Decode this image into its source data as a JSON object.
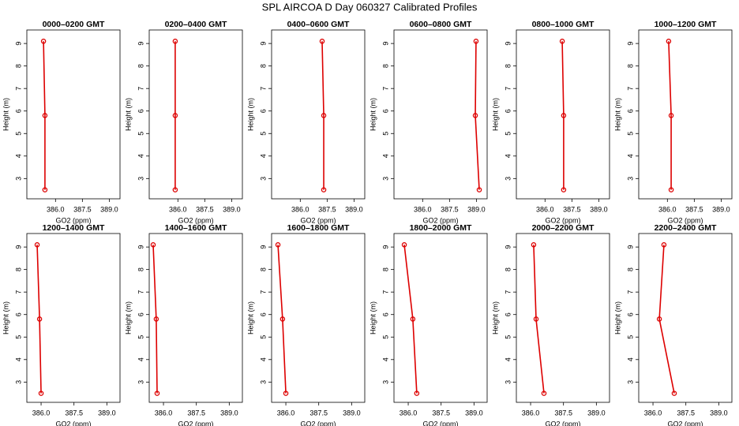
{
  "title": "SPL AIRCOA D  Day 060327  Calibrated Profiles",
  "chart_data": [
    {
      "type": "line",
      "title": "0000–0200 GMT",
      "xlabel": "GO2 (ppm)",
      "ylabel": "Height (m)",
      "color": "#dd0000",
      "x": [
        385.33,
        385.41,
        385.41
      ],
      "values": [
        9.1,
        5.8,
        2.5
      ],
      "xlim": [
        384.4,
        389.6
      ],
      "ylim": [
        2.1,
        9.6
      ],
      "xticks": [
        {
          "value": 386.0,
          "label": "386.0"
        },
        {
          "value": 387.5,
          "label": "387.5"
        },
        {
          "value": 389.0,
          "label": "389.0"
        }
      ],
      "yticks": [
        3,
        4,
        5,
        6,
        7,
        8,
        9
      ]
    },
    {
      "type": "line",
      "title": "0200–0400 GMT",
      "xlabel": "GO2 (ppm)",
      "ylabel": "Height (m)",
      "color": "#dd0000",
      "x": [
        385.85,
        385.85,
        385.85
      ],
      "values": [
        9.1,
        5.8,
        2.5
      ],
      "xlim": [
        384.4,
        389.6
      ],
      "ylim": [
        2.1,
        9.6
      ],
      "xticks": [
        {
          "value": 386.0,
          "label": "386.0"
        },
        {
          "value": 387.5,
          "label": "387.5"
        },
        {
          "value": 389.0,
          "label": "389.0"
        }
      ],
      "yticks": [
        3,
        4,
        5,
        6,
        7,
        8,
        9
      ]
    },
    {
      "type": "line",
      "title": "0400–0600 GMT",
      "xlabel": "GO2 (ppm)",
      "ylabel": "Height (m)",
      "color": "#dd0000",
      "x": [
        387.22,
        387.31,
        387.31
      ],
      "values": [
        9.1,
        5.8,
        2.5
      ],
      "xlim": [
        384.4,
        389.6
      ],
      "ylim": [
        2.1,
        9.6
      ],
      "xticks": [
        {
          "value": 386.0,
          "label": "386.0"
        },
        {
          "value": 387.5,
          "label": "387.5"
        },
        {
          "value": 389.0,
          "label": "389.0"
        }
      ],
      "yticks": [
        3,
        4,
        5,
        6,
        7,
        8,
        9
      ]
    },
    {
      "type": "line",
      "title": "0600–0800 GMT",
      "xlabel": "GO2 (ppm)",
      "ylabel": "Height (m)",
      "color": "#dd0000",
      "x": [
        388.98,
        388.94,
        389.16
      ],
      "values": [
        9.1,
        5.8,
        2.5
      ],
      "xlim": [
        384.4,
        389.6
      ],
      "ylim": [
        2.1,
        9.6
      ],
      "xticks": [
        {
          "value": 386.0,
          "label": "386.0"
        },
        {
          "value": 387.5,
          "label": "387.5"
        },
        {
          "value": 389.0,
          "label": "389.0"
        }
      ],
      "yticks": [
        3,
        4,
        5,
        6,
        7,
        8,
        9
      ]
    },
    {
      "type": "line",
      "title": "0800–1000 GMT",
      "xlabel": "GO2 (ppm)",
      "ylabel": "Height (m)",
      "color": "#dd0000",
      "x": [
        386.96,
        387.04,
        387.04
      ],
      "values": [
        9.1,
        5.8,
        2.5
      ],
      "xlim": [
        384.4,
        389.6
      ],
      "ylim": [
        2.1,
        9.6
      ],
      "xticks": [
        {
          "value": 386.0,
          "label": "386.0"
        },
        {
          "value": 387.5,
          "label": "387.5"
        },
        {
          "value": 389.0,
          "label": "389.0"
        }
      ],
      "yticks": [
        3,
        4,
        5,
        6,
        7,
        8,
        9
      ]
    },
    {
      "type": "line",
      "title": "1000–1200 GMT",
      "xlabel": "GO2 (ppm)",
      "ylabel": "Height (m)",
      "color": "#dd0000",
      "x": [
        386.07,
        386.21,
        386.21
      ],
      "values": [
        9.1,
        5.8,
        2.5
      ],
      "xlim": [
        384.4,
        389.6
      ],
      "ylim": [
        2.1,
        9.6
      ],
      "xticks": [
        {
          "value": 386.0,
          "label": "386.0"
        },
        {
          "value": 387.5,
          "label": "387.5"
        },
        {
          "value": 389.0,
          "label": "389.0"
        }
      ],
      "yticks": [
        3,
        4,
        5,
        6,
        7,
        8,
        9
      ]
    },
    {
      "type": "line",
      "title": "1200–1400 GMT",
      "xlabel": "GO2 (ppm)",
      "ylabel": "Height (m)",
      "color": "#dd0000",
      "x": [
        385.82,
        385.93,
        386.0
      ],
      "values": [
        9.1,
        5.8,
        2.5
      ],
      "xlim": [
        385.35,
        389.6
      ],
      "ylim": [
        2.1,
        9.6
      ],
      "xticks": [
        {
          "value": 386.0,
          "label": "386.0"
        },
        {
          "value": 387.5,
          "label": "387.5"
        },
        {
          "value": 389.0,
          "label": "389.0"
        }
      ],
      "yticks": [
        3,
        4,
        5,
        6,
        7,
        8,
        9
      ]
    },
    {
      "type": "line",
      "title": "1400–1600 GMT",
      "xlabel": "GO2 (ppm)",
      "ylabel": "Height (m)",
      "color": "#dd0000",
      "x": [
        385.53,
        385.67,
        385.71
      ],
      "values": [
        9.1,
        5.8,
        2.5
      ],
      "xlim": [
        385.35,
        389.6
      ],
      "ylim": [
        2.1,
        9.6
      ],
      "xticks": [
        {
          "value": 386.0,
          "label": "386.0"
        },
        {
          "value": 387.5,
          "label": "387.5"
        },
        {
          "value": 389.0,
          "label": "389.0"
        }
      ],
      "yticks": [
        3,
        4,
        5,
        6,
        7,
        8,
        9
      ]
    },
    {
      "type": "line",
      "title": "1600–1800 GMT",
      "xlabel": "GO2 (ppm)",
      "ylabel": "Height (m)",
      "color": "#dd0000",
      "x": [
        385.64,
        385.85,
        386.0
      ],
      "values": [
        9.1,
        5.8,
        2.5
      ],
      "xlim": [
        385.35,
        389.6
      ],
      "ylim": [
        2.1,
        9.6
      ],
      "xticks": [
        {
          "value": 386.0,
          "label": "386.0"
        },
        {
          "value": 387.5,
          "label": "387.5"
        },
        {
          "value": 389.0,
          "label": "389.0"
        }
      ],
      "yticks": [
        3,
        4,
        5,
        6,
        7,
        8,
        9
      ]
    },
    {
      "type": "line",
      "title": "1800–2000 GMT",
      "xlabel": "GO2 (ppm)",
      "ylabel": "Height (m)",
      "color": "#dd0000",
      "x": [
        385.82,
        386.21,
        386.39
      ],
      "values": [
        9.1,
        5.8,
        2.5
      ],
      "xlim": [
        385.35,
        389.6
      ],
      "ylim": [
        2.1,
        9.6
      ],
      "xticks": [
        {
          "value": 386.0,
          "label": "386.0"
        },
        {
          "value": 387.5,
          "label": "387.5"
        },
        {
          "value": 389.0,
          "label": "389.0"
        }
      ],
      "yticks": [
        3,
        4,
        5,
        6,
        7,
        8,
        9
      ]
    },
    {
      "type": "line",
      "title": "2000–2200 GMT",
      "xlabel": "GO2 (ppm)",
      "ylabel": "Height (m)",
      "color": "#dd0000",
      "x": [
        386.14,
        386.25,
        386.61
      ],
      "values": [
        9.1,
        5.8,
        2.5
      ],
      "xlim": [
        385.35,
        389.6
      ],
      "ylim": [
        2.1,
        9.6
      ],
      "xticks": [
        {
          "value": 386.0,
          "label": "386.0"
        },
        {
          "value": 387.5,
          "label": "387.5"
        },
        {
          "value": 389.0,
          "label": "389.0"
        }
      ],
      "yticks": [
        3,
        4,
        5,
        6,
        7,
        8,
        9
      ]
    },
    {
      "type": "line",
      "title": "2200–2400 GMT",
      "xlabel": "GO2 (ppm)",
      "ylabel": "Height (m)",
      "color": "#dd0000",
      "x": [
        386.5,
        386.29,
        386.97
      ],
      "values": [
        9.1,
        5.8,
        2.5
      ],
      "xlim": [
        385.35,
        389.6
      ],
      "ylim": [
        2.1,
        9.6
      ],
      "xticks": [
        {
          "value": 386.0,
          "label": "386.0"
        },
        {
          "value": 387.5,
          "label": "387.5"
        },
        {
          "value": 389.0,
          "label": "389.0"
        }
      ],
      "yticks": [
        3,
        4,
        5,
        6,
        7,
        8,
        9
      ]
    }
  ]
}
